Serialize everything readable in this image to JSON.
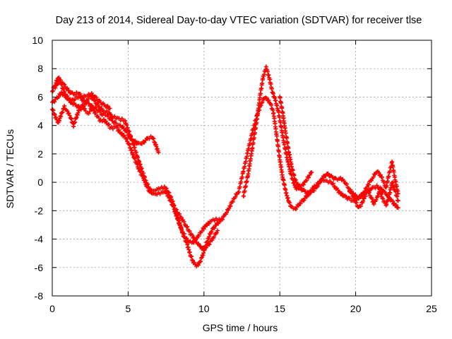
{
  "chart_data": {
    "type": "scatter",
    "title": "Day 213 of 2014, Sidereal Day-to-day VTEC variation (SDTVAR) for receiver tlse",
    "xlabel": "GPS time / hours",
    "ylabel": "SDTVAR / TECUs",
    "xlim": [
      0,
      25
    ],
    "ylim": [
      -8,
      10
    ],
    "xticks": [
      0,
      5,
      10,
      15,
      20,
      25
    ],
    "yticks": [
      -8,
      -6,
      -4,
      -2,
      0,
      2,
      4,
      6,
      8,
      10
    ],
    "grid": true,
    "marker": "plus",
    "series": [
      {
        "name": "SDTVAR",
        "color": "#ff0000",
        "branches": [
          {
            "x": [
              0.0,
              0.2,
              0.4,
              0.6,
              0.8,
              1.0,
              1.3,
              1.6,
              1.9,
              2.2,
              2.5,
              2.8,
              3.1,
              3.4,
              3.7,
              4.0,
              4.3,
              4.6,
              4.8,
              5.0,
              5.2,
              5.4,
              5.6,
              5.8,
              6.0,
              6.2,
              6.4,
              6.6,
              6.8,
              7.0,
              7.2,
              7.4,
              7.6,
              7.8,
              8.0,
              8.3,
              8.6,
              8.9,
              9.1,
              9.3,
              9.5,
              9.7,
              9.9,
              10.1,
              10.3,
              10.5,
              10.8,
              11.1,
              11.4,
              11.7,
              12.0,
              12.3,
              12.6,
              12.9,
              13.2,
              13.5,
              13.8,
              14.0,
              14.2,
              14.4,
              14.6,
              14.8,
              15.0,
              15.2,
              15.4,
              15.6,
              15.8,
              16.0,
              16.3,
              16.6,
              16.9,
              17.2,
              17.5,
              17.8,
              18.1,
              18.4,
              18.7,
              19.0,
              19.3,
              19.6,
              19.9,
              20.2,
              20.5,
              20.8,
              21.1,
              21.4,
              21.7,
              22.0,
              22.3,
              22.6,
              22.8
            ],
            "y": [
              6.4,
              6.9,
              7.4,
              6.9,
              6.3,
              6.0,
              5.6,
              5.4,
              5.2,
              5.6,
              6.1,
              5.7,
              5.3,
              5.0,
              4.9,
              4.6,
              4.5,
              4.4,
              4.3,
              3.7,
              3.1,
              2.5,
              1.8,
              1.2,
              0.6,
              0.0,
              -0.4,
              -0.7,
              -0.6,
              -0.5,
              -0.4,
              -0.3,
              -0.6,
              -1.0,
              -1.6,
              -2.6,
              -3.6,
              -4.4,
              -5.1,
              -5.6,
              -5.9,
              -5.7,
              -5.2,
              -4.5,
              -3.9,
              -3.4,
              -3.0,
              -2.7,
              -2.3,
              -1.7,
              -1.1,
              -0.6,
              0.8,
              2.2,
              3.6,
              4.7,
              5.6,
              6.0,
              5.8,
              5.5,
              4.8,
              3.2,
              1.6,
              0.3,
              -0.7,
              -1.4,
              -1.8,
              -1.9,
              -1.5,
              -1.2,
              -0.8,
              -0.4,
              -0.1,
              0.2,
              0.1,
              0.0,
              -0.4,
              -0.8,
              -1.0,
              -1.2,
              -1.3,
              -1.1,
              -0.8,
              -0.6,
              -0.4,
              -0.3,
              -0.5,
              -0.8,
              -1.2,
              -1.6,
              -1.8
            ]
          },
          {
            "x": [
              0.0,
              0.3,
              0.6,
              0.9,
              1.2,
              1.5,
              1.8,
              2.1,
              2.4,
              2.7,
              3.0,
              3.3,
              3.6,
              3.9,
              4.2,
              4.5,
              4.8,
              5.1,
              5.4,
              5.7,
              6.0,
              6.3,
              6.6,
              6.8,
              7.0
            ],
            "y": [
              5.6,
              5.9,
              6.3,
              6.0,
              5.7,
              5.9,
              6.0,
              5.7,
              5.5,
              5.3,
              5.1,
              4.8,
              4.7,
              4.4,
              4.1,
              4.0,
              3.7,
              3.2,
              2.9,
              2.7,
              2.8,
              3.1,
              3.2,
              2.7,
              2.1
            ]
          },
          {
            "x": [
              0.0,
              0.2,
              0.4,
              0.6,
              0.8,
              1.0,
              1.2,
              1.4,
              1.6,
              1.8,
              2.0,
              2.2,
              2.4,
              2.6,
              2.8,
              3.0,
              3.2,
              3.4,
              3.6,
              3.8,
              4.0,
              4.2,
              4.4,
              4.6,
              4.8,
              5.0,
              5.2,
              5.4,
              5.6,
              5.8,
              6.0,
              6.2,
              6.4,
              6.6,
              6.8,
              7.0,
              7.2,
              7.4,
              7.6,
              7.8,
              8.0,
              8.2,
              8.4,
              8.6,
              8.8,
              9.0,
              9.2,
              9.4,
              9.6,
              9.8,
              10.0,
              10.2,
              10.4,
              10.6,
              10.8,
              11.0
            ],
            "y": [
              5.2,
              4.6,
              4.2,
              4.8,
              5.3,
              5.0,
              4.6,
              4.0,
              4.6,
              5.2,
              5.4,
              5.0,
              4.9,
              5.2,
              4.9,
              4.6,
              4.3,
              4.4,
              4.2,
              3.9,
              3.8,
              3.9,
              3.6,
              3.4,
              3.2,
              2.8,
              2.3,
              1.7,
              1.2,
              0.7,
              0.3,
              -0.2,
              -0.6,
              -0.8,
              -0.9,
              -0.8,
              -0.7,
              -0.6,
              -0.9,
              -1.3,
              -1.8,
              -2.4,
              -3.0,
              -3.5,
              -3.9,
              -4.2,
              -4.3,
              -4.1,
              -3.8,
              -3.5,
              -3.2,
              -3.0,
              -2.8,
              -2.7,
              -2.6,
              -2.6
            ]
          },
          {
            "x": [
              8.2,
              8.5,
              8.8,
              9.1,
              9.4,
              9.7,
              10.0,
              10.3,
              10.6,
              10.9
            ],
            "y": [
              -2.0,
              -2.5,
              -3.0,
              -3.6,
              -4.0,
              -4.5,
              -4.7,
              -4.4,
              -3.9,
              -3.4
            ]
          },
          {
            "x": [
              0.2,
              0.5,
              0.8,
              1.1,
              1.4,
              1.7,
              2.0,
              2.3,
              2.6,
              2.9,
              3.2,
              3.5,
              3.8
            ],
            "y": [
              6.7,
              7.2,
              6.8,
              6.4,
              6.2,
              6.3,
              6.0,
              6.1,
              6.2,
              5.9,
              5.6,
              5.4,
              5.2
            ]
          },
          {
            "x": [
              12.6,
              12.9,
              13.2,
              13.5,
              13.7,
              13.9,
              14.1,
              14.3,
              14.5,
              14.7,
              14.9,
              15.1,
              15.3,
              15.5,
              15.7,
              15.9,
              16.1,
              16.3,
              16.5,
              16.7,
              16.9,
              17.1
            ],
            "y": [
              -1.0,
              0.5,
              2.5,
              4.5,
              6.1,
              7.4,
              8.1,
              7.4,
              6.4,
              5.8,
              5.0,
              3.8,
              2.6,
              1.6,
              0.7,
              0.0,
              -0.5,
              -0.3,
              -0.2,
              0.1,
              0.4,
              0.7
            ]
          },
          {
            "x": [
              15.0,
              15.2,
              15.4,
              15.6,
              15.8,
              16.0,
              16.3,
              16.6,
              16.9,
              17.2,
              17.5,
              17.8,
              18.1,
              18.4,
              18.7,
              19.0,
              19.3,
              19.6,
              19.9,
              20.2,
              20.5,
              20.8,
              21.1,
              21.4,
              21.7,
              22.0,
              22.2,
              22.4,
              22.6,
              22.8
            ],
            "y": [
              6.0,
              4.8,
              3.4,
              2.1,
              1.0,
              0.2,
              -0.4,
              -0.6,
              -0.8,
              -0.6,
              -0.2,
              0.3,
              0.6,
              0.4,
              0.2,
              0.3,
              0.0,
              -0.5,
              -0.9,
              -1.1,
              -0.8,
              -0.2,
              0.3,
              0.8,
              0.4,
              -0.4,
              0.6,
              1.4,
              0.2,
              -0.8
            ]
          },
          {
            "x": [
              19.6,
              19.8,
              20.0,
              20.2,
              20.4,
              20.6,
              20.8,
              21.0,
              21.2,
              21.4,
              21.6,
              21.8,
              22.0,
              22.2,
              22.4,
              22.6,
              22.8
            ],
            "y": [
              -0.6,
              -0.9,
              -1.4,
              -1.8,
              -1.5,
              -1.0,
              -0.6,
              -1.0,
              -1.5,
              -1.1,
              -0.6,
              -1.2,
              -1.6,
              -1.0,
              0.0,
              -0.6,
              -1.3
            ]
          }
        ]
      }
    ]
  }
}
